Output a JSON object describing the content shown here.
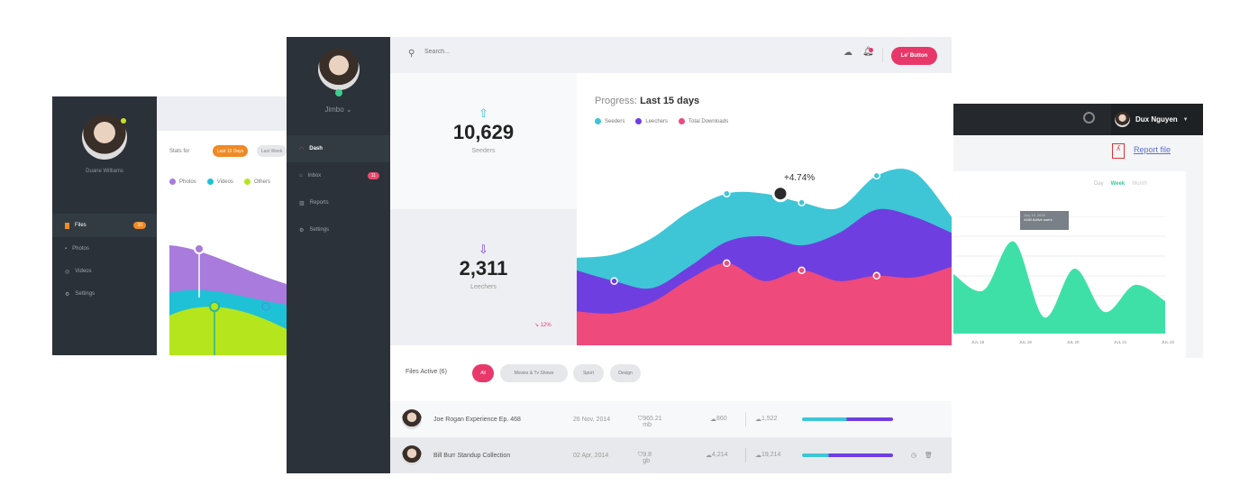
{
  "left_panel": {
    "user_name": "Duane Williams",
    "nav": [
      {
        "label": "Files",
        "badge": "20",
        "icon": "file-icon",
        "active": true
      },
      {
        "label": "Photos",
        "icon": "camera-icon"
      },
      {
        "label": "Videos",
        "icon": "play-icon"
      },
      {
        "label": "Settings",
        "icon": "gear-icon"
      }
    ],
    "stats_for_label": "Stats for",
    "ranges": [
      "Last 10 Days",
      "Last Week"
    ],
    "legend": [
      {
        "name": "Photos",
        "color": "#a87bdc"
      },
      {
        "name": "Videos",
        "color": "#1fc1d6"
      },
      {
        "name": "Others",
        "color": "#b5e61d"
      }
    ]
  },
  "main_panel": {
    "user_name": "Jimbo",
    "nav": [
      {
        "label": "Dash",
        "icon": "dashboard-icon",
        "active": true
      },
      {
        "label": "Inbox",
        "badge": "11",
        "icon": "inbox-icon"
      },
      {
        "label": "Reports",
        "icon": "bar-chart-icon"
      },
      {
        "label": "Settings",
        "icon": "gear-icon"
      }
    ],
    "search_placeholder": "Search...",
    "header_button": "Le' Button",
    "stats": [
      {
        "value": "10,629",
        "label": "Seeders",
        "icon": "cloud-upload-icon"
      },
      {
        "value": "2,311",
        "label": "Leechers",
        "icon": "cloud-download-icon",
        "change": "↘ 12%"
      }
    ],
    "chart": {
      "title_prefix": "Progress:",
      "title": "Last 15 days",
      "annotation": "+4.74%",
      "legend": [
        {
          "name": "Seeders",
          "color": "#3ec6d6"
        },
        {
          "name": "Leechers",
          "color": "#6f3ee0"
        },
        {
          "name": "Total Downloads",
          "color": "#ee4a7c"
        }
      ]
    },
    "files": {
      "title": "Files Active (6)",
      "filters": [
        "All",
        "Movies & Tv Shows",
        "Sport",
        "Design"
      ],
      "rows": [
        {
          "name": "Joe Rogan Experience Ep. 468",
          "date": "26 Nov, 2014",
          "size": "965.21 mb",
          "up": "860",
          "down": "1,522",
          "progress": 0.49
        },
        {
          "name": "Bill Burr Standup Collection",
          "date": "02 Apr, 2014",
          "size": "9.8 gb",
          "up": "4,214",
          "down": "19,214",
          "progress": 0.29
        }
      ]
    }
  },
  "right_panel": {
    "user_name": "Dux Nguyen",
    "report_link": "Report file",
    "periods": [
      "Day",
      "Week",
      "Month"
    ],
    "active_period": "Week",
    "tooltip": {
      "date": "July 19, 2016",
      "value": "4180 Active users"
    },
    "x_labels": [
      "JUL 18",
      "JUL 19",
      "JUL 20",
      "JUL 21",
      "JUL 22"
    ]
  },
  "chart_data": [
    {
      "type": "area",
      "x": [
        1,
        2,
        3,
        4,
        5,
        6,
        7,
        8,
        9,
        10,
        11
      ],
      "series": [
        {
          "name": "Seeders",
          "values": [
            49,
            51,
            60,
            75,
            85,
            85,
            80,
            77,
            95,
            97,
            72
          ]
        },
        {
          "name": "Leechers",
          "values": [
            42,
            36,
            32,
            44,
            58,
            61,
            56,
            63,
            76,
            72,
            63
          ]
        },
        {
          "name": "Total Downloads",
          "values": [
            19,
            18,
            24,
            37,
            46,
            36,
            42,
            36,
            39,
            38,
            44
          ]
        }
      ]
    },
    {
      "type": "area",
      "x_labels": [
        "JUL 18",
        "JUL 19",
        "JUL 20",
        "JUL 21",
        "JUL 22"
      ],
      "values": [
        55,
        40,
        85,
        15,
        60,
        20,
        45,
        30
      ]
    }
  ]
}
